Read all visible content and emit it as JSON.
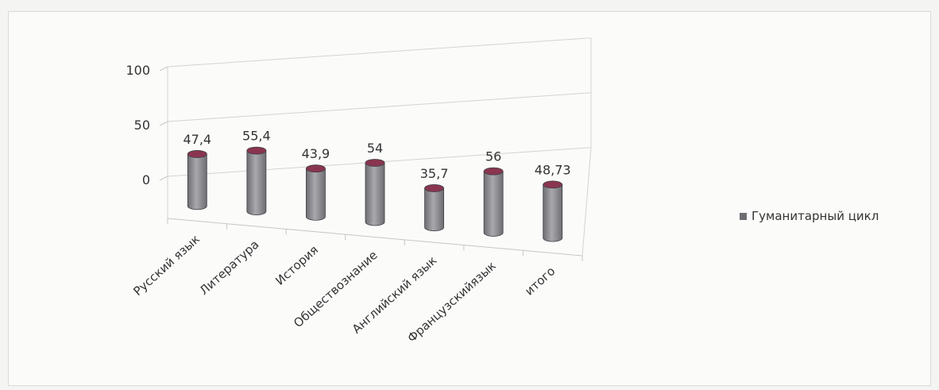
{
  "chart_data": {
    "type": "bar",
    "style": "3d-cylinder",
    "categories": [
      "Русский язык",
      "Литература",
      "История",
      "Обществознание",
      "Английский язык",
      "Французскийязык",
      "итого"
    ],
    "series": [
      {
        "name": "Гуманитарный цикл",
        "values": [
          47.4,
          55.4,
          43.9,
          54,
          35.7,
          56,
          48.73
        ]
      }
    ],
    "data_labels": [
      "47,4",
      "55,4",
      "43,9",
      "54",
      "35,7",
      "56",
      "48,73"
    ],
    "y_ticks": [
      "0",
      "50",
      "100"
    ],
    "ylim": [
      0,
      100
    ],
    "grid": true,
    "legend_position": "right",
    "colors": {
      "bar": "#6e6e72",
      "bar_highlight": "#a9a9ad",
      "bar_top": "#8a3550"
    }
  }
}
